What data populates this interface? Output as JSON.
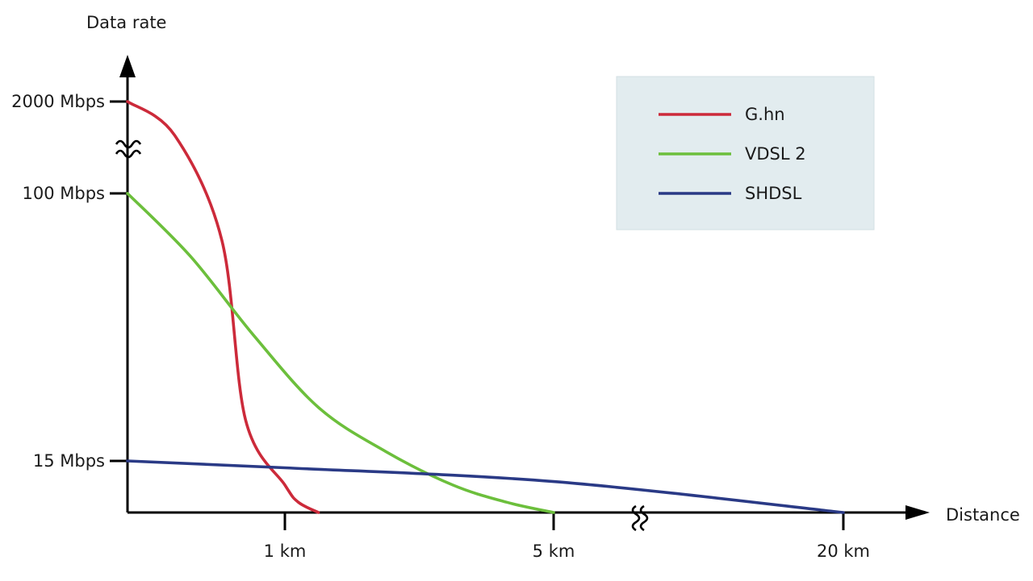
{
  "chart_data": {
    "type": "line",
    "xlabel": "Distance",
    "ylabel": "Data rate",
    "x_ticks": [
      {
        "label": "1 km",
        "value": 1
      },
      {
        "label": "5 km",
        "value": 5
      },
      {
        "label": "20 km",
        "value": 20
      }
    ],
    "y_ticks": [
      {
        "label": "2000 Mbps",
        "value": 2000
      },
      {
        "label": "100 Mbps",
        "value": 100
      },
      {
        "label": "15 Mbps",
        "value": 15
      }
    ],
    "axis_breaks": {
      "x": "between 5 km and 20 km",
      "y": "between 100 Mbps and 2000 Mbps"
    },
    "grid": false,
    "legend": {
      "position": "top-right",
      "background": "#e2ecef"
    },
    "series": [
      {
        "name": "G.hn",
        "color": "#cc2a3a",
        "points": [
          [
            0,
            2000
          ],
          [
            0.3,
            1300
          ],
          [
            0.6,
            85
          ],
          [
            0.75,
            28
          ],
          [
            1.0,
            8
          ],
          [
            1.2,
            3
          ],
          [
            1.5,
            0
          ]
        ]
      },
      {
        "name": "VDSL 2",
        "color": "#6cbf3c",
        "points": [
          [
            0,
            100
          ],
          [
            0.4,
            80
          ],
          [
            0.8,
            55
          ],
          [
            1.5,
            32
          ],
          [
            2.5,
            18
          ],
          [
            3.5,
            8
          ],
          [
            4.3,
            3
          ],
          [
            5.0,
            0
          ]
        ]
      },
      {
        "name": "SHDSL",
        "color": "#2a3a86",
        "points": [
          [
            0,
            15
          ],
          [
            1.0,
            13
          ],
          [
            5.0,
            9
          ],
          [
            20,
            0
          ]
        ]
      }
    ]
  }
}
